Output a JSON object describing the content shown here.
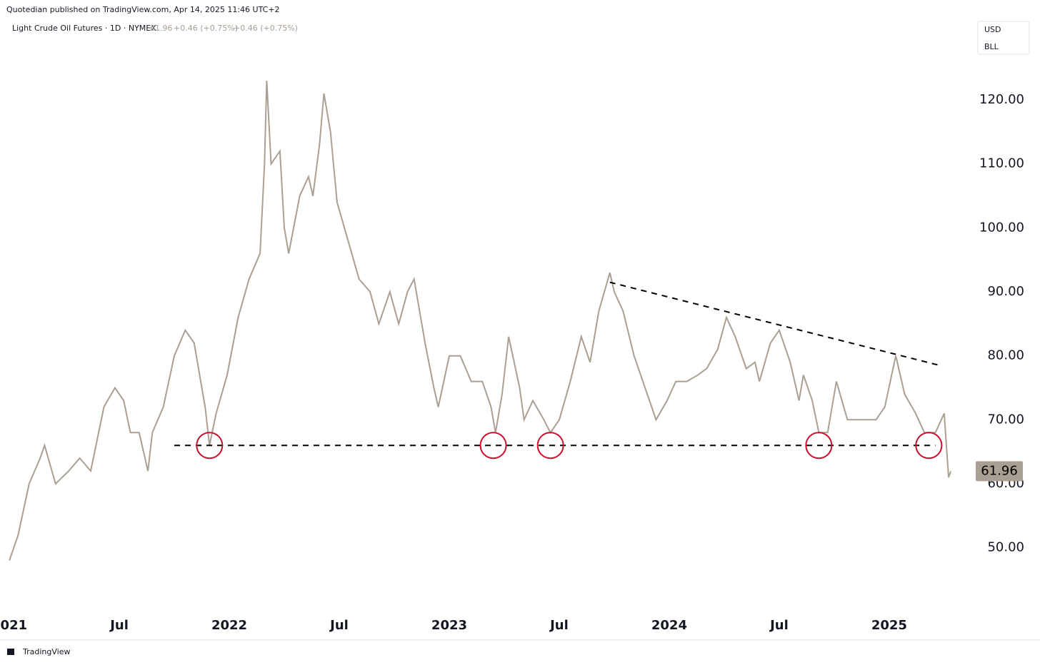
{
  "header": {
    "byline": "Quotedian published on TradingView.com, Apr 14, 2025 11:46 UTC+2"
  },
  "legend": {
    "symbol": "Light Crude Oil Futures · 1D · NYMEX",
    "change": "+0.46 (+0.75%)",
    "change2": "+0.46 (+0.75%)"
  },
  "scale_box": [
    "USD",
    "BLL"
  ],
  "footer": {
    "brand": "TradingView"
  },
  "chart_data": {
    "type": "line",
    "color": "#aa9f93",
    "x": [
      2021.0,
      2021.04,
      2021.09,
      2021.14,
      2021.16,
      2021.21,
      2021.27,
      2021.32,
      2021.37,
      2021.43,
      2021.48,
      2021.52,
      2021.55,
      2021.59,
      2021.63,
      2021.65,
      2021.7,
      2021.75,
      2021.8,
      2021.84,
      2021.89,
      2021.91,
      2021.94,
      2021.99,
      2022.04,
      2022.09,
      2022.14,
      2022.16,
      2022.17,
      2022.19,
      2022.23,
      2022.25,
      2022.27,
      2022.32,
      2022.36,
      2022.38,
      2022.41,
      2022.43,
      2022.46,
      2022.49,
      2022.54,
      2022.59,
      2022.64,
      2022.68,
      2022.73,
      2022.77,
      2022.81,
      2022.84,
      2022.89,
      2022.93,
      2022.95,
      2023.0,
      2023.05,
      2023.1,
      2023.15,
      2023.19,
      2023.21,
      2023.24,
      2023.27,
      2023.32,
      2023.34,
      2023.38,
      2023.43,
      2023.46,
      2023.5,
      2023.55,
      2023.6,
      2023.64,
      2023.68,
      2023.73,
      2023.75,
      2023.79,
      2023.84,
      2023.89,
      2023.94,
      2023.99,
      2024.03,
      2024.08,
      2024.13,
      2024.17,
      2024.22,
      2024.26,
      2024.3,
      2024.35,
      2024.39,
      2024.41,
      2024.46,
      2024.5,
      2024.55,
      2024.59,
      2024.61,
      2024.65,
      2024.68,
      2024.72,
      2024.76,
      2024.81,
      2024.85,
      2024.89,
      2024.94,
      2024.98,
      2025.03,
      2025.07,
      2025.12,
      2025.16,
      2025.21,
      2025.25,
      2025.27,
      2025.28
    ],
    "values": [
      48,
      52,
      60,
      64,
      66,
      60,
      62,
      64,
      62,
      72,
      75,
      73,
      68,
      68,
      62,
      68,
      72,
      80,
      84,
      82,
      72,
      66,
      71,
      77,
      86,
      92,
      96,
      110,
      123,
      110,
      112,
      100,
      96,
      105,
      108,
      105,
      113,
      121,
      115,
      104,
      98,
      92,
      90,
      85,
      90,
      85,
      90,
      92,
      82,
      75,
      72,
      80,
      80,
      76,
      76,
      72,
      68,
      74,
      83,
      75,
      70,
      73,
      70,
      68,
      70,
      76,
      83,
      79,
      87,
      93,
      90,
      87,
      80,
      75,
      70,
      73,
      76,
      76,
      77,
      78,
      81,
      86,
      83,
      78,
      79,
      76,
      82,
      84,
      79,
      73,
      77,
      73,
      68,
      68,
      76,
      70,
      70,
      70,
      70,
      72,
      80,
      74,
      71,
      68,
      68,
      71,
      61,
      61.96
    ],
    "xlim": [
      2020.99,
      2025.39
    ],
    "ylim": [
      39.7,
      132.5
    ],
    "xticks": [
      {
        "value": 2021,
        "label": "2021"
      },
      {
        "value": 2021.5,
        "label": "Jul"
      },
      {
        "value": 2022,
        "label": "2022"
      },
      {
        "value": 2022.5,
        "label": "Jul"
      },
      {
        "value": 2023,
        "label": "2023"
      },
      {
        "value": 2023.5,
        "label": "Jul"
      },
      {
        "value": 2024,
        "label": "2024"
      },
      {
        "value": 2024.5,
        "label": "Jul"
      },
      {
        "value": 2025,
        "label": "2025"
      }
    ],
    "yticks": [
      {
        "value": 50,
        "label": "50.00"
      },
      {
        "value": 60,
        "label": "60.00"
      },
      {
        "value": 70,
        "label": "70.00"
      },
      {
        "value": 80,
        "label": "80.00"
      },
      {
        "value": 90,
        "label": "90.00"
      },
      {
        "value": 100,
        "label": "100.00"
      },
      {
        "value": 110,
        "label": "110.00"
      },
      {
        "value": 120,
        "label": "120.00"
      }
    ],
    "trendlines": [
      {
        "x": [
          2021.75,
          2025.21
        ],
        "y": [
          66,
          66
        ]
      },
      {
        "x": [
          2023.73,
          2025.23
        ],
        "y": [
          91.5,
          78.5
        ]
      }
    ],
    "circles": {
      "x": [
        2021.91,
        2023.2,
        2023.46,
        2024.68,
        2025.18
      ],
      "y": [
        66,
        66,
        66,
        66,
        66
      ],
      "color": "#c8102e"
    }
  }
}
